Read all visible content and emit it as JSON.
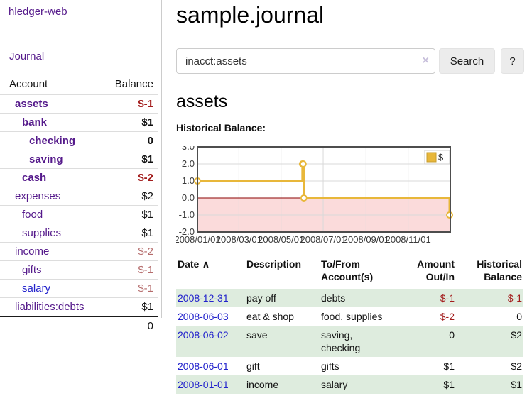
{
  "app": {
    "title": "hledger-web",
    "nav_journal": "Journal"
  },
  "header": {
    "title": "sample.journal"
  },
  "search": {
    "value": "inacct:assets",
    "clear_icon": "×",
    "button": "Search",
    "help_button": "?"
  },
  "account_page": {
    "heading": "assets",
    "chart_label": "Historical Balance:"
  },
  "sidebar": {
    "table": {
      "col_account": "Account",
      "col_balance": "Balance",
      "accounts": [
        {
          "name": "assets",
          "level": 1,
          "bold": true,
          "balance": "$-1",
          "neg": "strong",
          "link": "visited"
        },
        {
          "name": "bank",
          "level": 2,
          "bold": true,
          "balance": "$1",
          "neg": null,
          "link": "visited"
        },
        {
          "name": "checking",
          "level": 3,
          "bold": true,
          "balance": "0",
          "neg": null,
          "link": "visited"
        },
        {
          "name": "saving",
          "level": 3,
          "bold": true,
          "balance": "$1",
          "neg": null,
          "link": "visited"
        },
        {
          "name": "cash",
          "level": 2,
          "bold": true,
          "balance": "$-2",
          "neg": "strong",
          "link": "visited"
        },
        {
          "name": "expenses",
          "level": 1,
          "bold": false,
          "balance": "$2",
          "neg": null,
          "link": "visited"
        },
        {
          "name": "food",
          "level": 2,
          "bold": false,
          "balance": "$1",
          "neg": null,
          "link": "visited"
        },
        {
          "name": "supplies",
          "level": 2,
          "bold": false,
          "balance": "$1",
          "neg": null,
          "link": "visited"
        },
        {
          "name": "income",
          "level": 1,
          "bold": false,
          "balance": "$-2",
          "neg": "muted",
          "link": "visited"
        },
        {
          "name": "gifts",
          "level": 2,
          "bold": false,
          "balance": "$-1",
          "neg": "muted",
          "link": "visited"
        },
        {
          "name": "salary",
          "level": 2,
          "bold": false,
          "balance": "$-1",
          "neg": "muted",
          "link": "unvisited"
        },
        {
          "name": "liabilities:debts",
          "level": 1,
          "bold": false,
          "balance": "$1",
          "neg": null,
          "link": "visited"
        }
      ],
      "total": "0"
    }
  },
  "chart_data": {
    "type": "line",
    "step": true,
    "title": "Historical Balance:",
    "legend": {
      "label": "$",
      "swatch_color": "#e8b73a",
      "position": "top-right"
    },
    "x_domain_days": [
      0,
      366
    ],
    "y_domain": [
      -2,
      3
    ],
    "y_ticks": [
      "3.0",
      "2.0",
      "1.0",
      "0.0",
      "-1.0",
      "-2.0"
    ],
    "x_ticks": [
      {
        "label": "2008/01/01",
        "day": 0
      },
      {
        "label": "2008/03/01",
        "day": 60
      },
      {
        "label": "2008/05/01",
        "day": 121
      },
      {
        "label": "2008/07/01",
        "day": 182
      },
      {
        "label": "2008/09/01",
        "day": 244
      },
      {
        "label": "2008/11/01",
        "day": 305
      }
    ],
    "series": [
      {
        "name": "$",
        "color": "#e8b73a",
        "points": [
          {
            "date": "2008-01-01",
            "day": 0,
            "value": 1
          },
          {
            "date": "2008-06-01",
            "day": 152,
            "value": 2
          },
          {
            "date": "2008-06-02",
            "day": 153,
            "value": 2
          },
          {
            "date": "2008-06-03",
            "day": 154,
            "value": 0
          },
          {
            "date": "2008-12-31",
            "day": 365,
            "value": -1
          }
        ]
      }
    ],
    "grid": true,
    "grid_color": "#d9d9d9",
    "border_color": "#4d4d4d",
    "negative_region_color": "#fbdbdb",
    "zero_line_color": "#8b0000"
  },
  "register": {
    "columns": {
      "date": "Date",
      "sort_icon": "∧",
      "description": "Description",
      "account": "To/From Account(s)",
      "amount": "Amount Out/In",
      "balance": "Historical Balance"
    },
    "rows": [
      {
        "date": "2008-12-31",
        "description": "pay off",
        "accounts": "debts",
        "amount": "$-1",
        "amount_neg": true,
        "balance": "$-1",
        "balance_neg": true
      },
      {
        "date": "2008-06-03",
        "description": "eat & shop",
        "accounts": "food, supplies",
        "amount": "$-2",
        "amount_neg": true,
        "balance": "0",
        "balance_neg": false
      },
      {
        "date": "2008-06-02",
        "description": "save",
        "accounts": "saving,\nchecking",
        "amount": "0",
        "amount_neg": false,
        "balance": "$2",
        "balance_neg": false
      },
      {
        "date": "2008-06-01",
        "description": "gift",
        "accounts": "gifts",
        "amount": "$1",
        "amount_neg": false,
        "balance": "$2",
        "balance_neg": false
      },
      {
        "date": "2008-01-01",
        "description": "income",
        "accounts": "salary",
        "amount": "$1",
        "amount_neg": false,
        "balance": "$1",
        "balance_neg": false
      }
    ]
  },
  "colors": {
    "link_purple": "#551a8b",
    "link_blue": "#2222cc",
    "negative_strong": "#a31d1d",
    "negative_muted": "#b56c6c",
    "row_green": "#deecde",
    "chart_gold": "#e8b73a",
    "chart_negative_bg": "#fbdbdb",
    "chart_zero_line": "#8b0000"
  }
}
